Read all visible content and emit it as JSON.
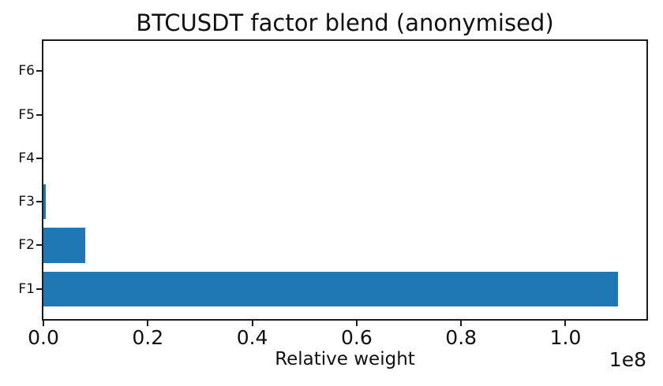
{
  "title": "BTCUSDT factor blend (anonymised)",
  "xlabel": "Relative weight",
  "offset_label": "1e8",
  "colors": {
    "bar": "#1f77b4",
    "spine": "#1c1c1c",
    "text": "#111111",
    "background": "#ffffff"
  },
  "chart_data": {
    "type": "bar",
    "orientation": "horizontal",
    "title": "BTCUSDT factor blend (anonymised)",
    "xlabel": "Relative weight",
    "ylabel": "",
    "categories": [
      "F1",
      "F2",
      "F3",
      "F4",
      "F5",
      "F6"
    ],
    "values": [
      110000000,
      8000000,
      400000,
      0,
      0,
      0
    ],
    "categories_order": "bottom-to-top",
    "xlim": [
      0,
      115500000
    ],
    "ylim": [
      -0.69,
      5.69
    ],
    "bar_height_units": 0.8,
    "xticks": [
      0,
      20000000,
      40000000,
      60000000,
      80000000,
      100000000
    ],
    "xtick_labels": [
      "0.0",
      "0.2",
      "0.4",
      "0.6",
      "0.8",
      "1.0"
    ],
    "x_offset_text": "1e8",
    "grid": false,
    "legend": false
  }
}
